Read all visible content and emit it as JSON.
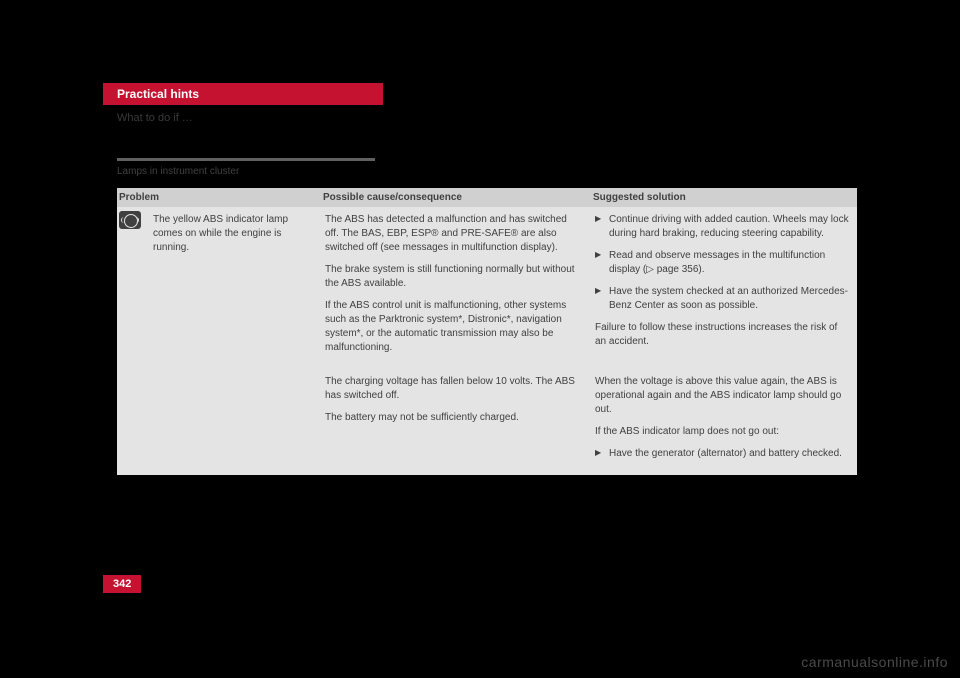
{
  "header": {
    "tab": "Practical hints",
    "subtitle": "What to do if …"
  },
  "section": {
    "title": "Lamps in instrument cluster"
  },
  "table": {
    "headers": {
      "problem": "Problem",
      "cause": "Possible cause/consequence",
      "solution": "Suggested solution"
    },
    "row1": {
      "problem": "The yellow ABS indicator lamp comes on while the engine is running.",
      "cause_p1": "The ABS has detected a malfunction and has switched off. The BAS, EBP, ESP® and PRE-SAFE® are also switched off (see messages in multifunction display).",
      "cause_p2": "The brake system is still functioning normally but without the ABS available.",
      "cause_p3": "If the ABS control unit is malfunctioning, other systems such as the Parktronic system*, Distronic*, navigation system*, or the automatic transmission may also be malfunctioning.",
      "solution_b1": "Continue driving with added caution. Wheels may lock during hard braking, reducing steering capability.",
      "solution_b2": "Read and observe messages in the multifunction display (▷ page 356).",
      "solution_b3": "Have the system checked at an authorized Mercedes-Benz Center as soon as possible.",
      "solution_tail": "Failure to follow these instructions increases the risk of an accident."
    },
    "row2": {
      "cause_p1": "The charging voltage has fallen below 10 volts. The ABS has switched off.",
      "cause_p2": "The battery may not be sufficiently charged.",
      "solution_p1": "When the voltage is above this value again, the ABS is operational again and the ABS indicator lamp should go out.",
      "solution_p2": "If the ABS indicator lamp does not go out:",
      "solution_b1": "Have the generator (alternator) and battery checked."
    }
  },
  "pageNumber": "342",
  "watermark": "carmanualsonline.info",
  "colors": {
    "brand": "#c41230",
    "bg": "#000000",
    "tableHeader": "#d0d0d0",
    "tableCell": "#e4e4e4",
    "text": "#404040"
  }
}
